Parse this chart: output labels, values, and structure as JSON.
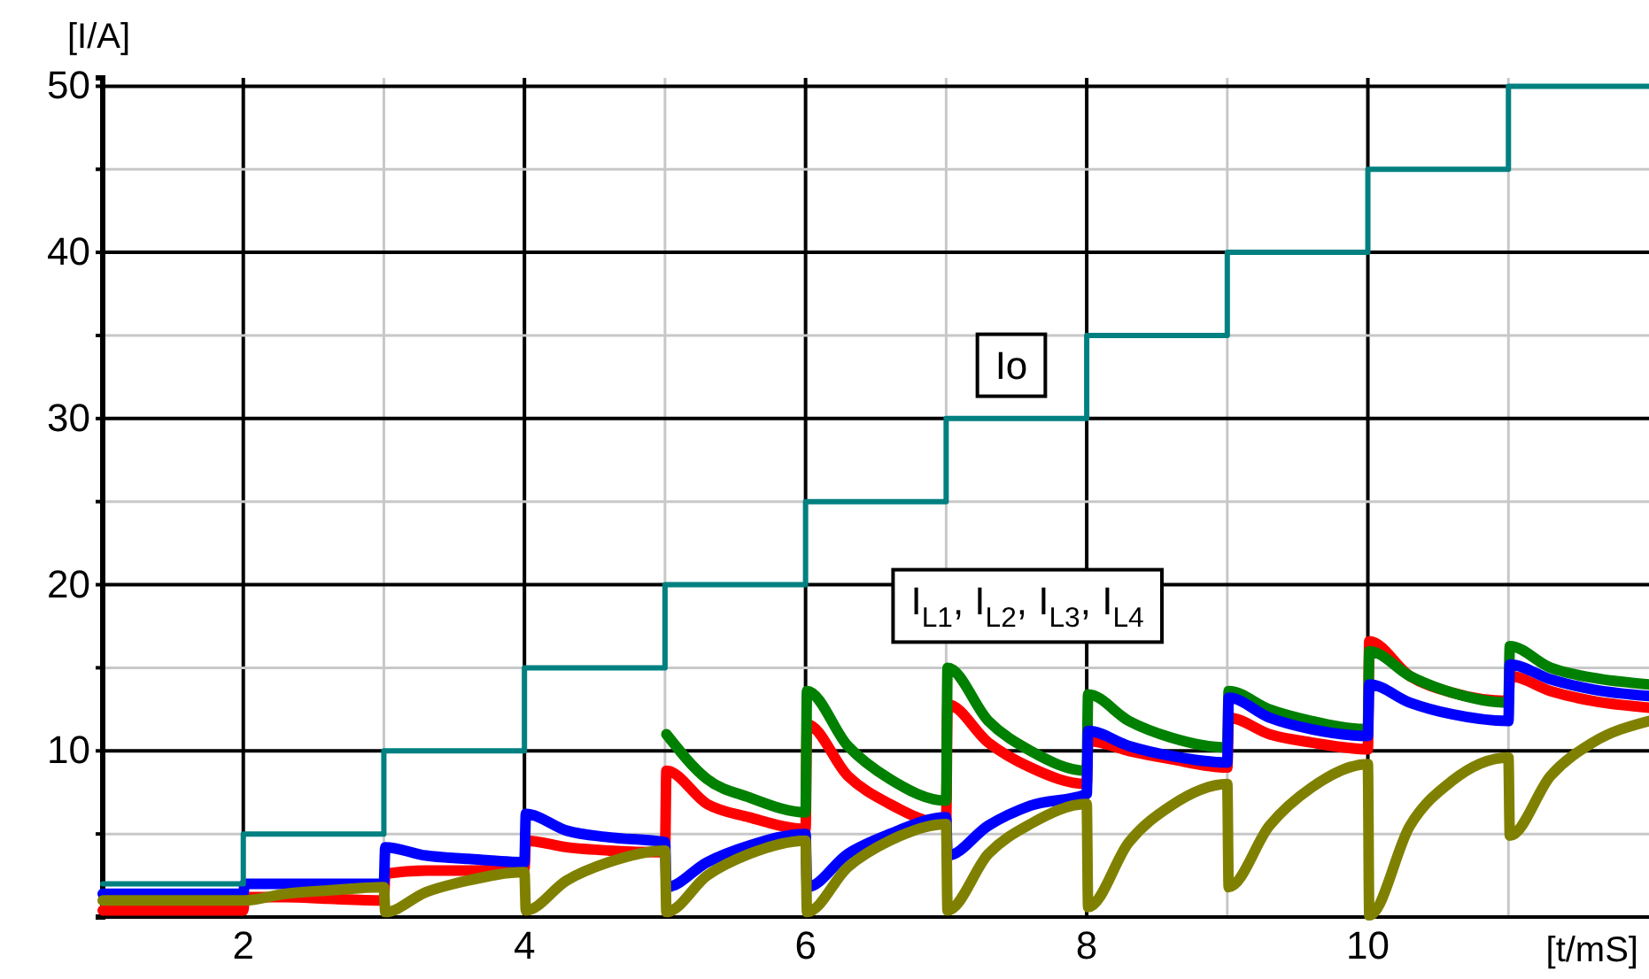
{
  "chart_data": {
    "type": "line",
    "xlabel": "[t/mS]",
    "ylabel": "[I/A]",
    "xlim": [
      1,
      12
    ],
    "ylim": [
      0,
      50.5
    ],
    "xticks": [
      {
        "value": 1,
        "label": null
      },
      2,
      {
        "value": 3,
        "label": null
      },
      4,
      {
        "value": 5,
        "label": null
      },
      6,
      {
        "value": 7,
        "label": null
      },
      8,
      {
        "value": 9,
        "label": null
      },
      10,
      {
        "value": 11,
        "label": null
      }
    ],
    "yticks": [
      {
        "value": 5,
        "label": null
      },
      10,
      {
        "value": 15,
        "label": null
      },
      20,
      {
        "value": 25,
        "label": null
      },
      30,
      {
        "value": 35,
        "label": null
      },
      40,
      {
        "value": 45,
        "label": null
      },
      50
    ],
    "grid": true,
    "annotations": [
      "Io",
      "I$_{L1}$, I$_{L2}$, I$_{L3}$, I$_{L4}$"
    ],
    "series": [
      {
        "color": "#ff0000",
        "x": [
          1,
          1.3,
          1.6,
          2,
          2.01,
          2.3,
          2.6,
          3,
          3.01,
          3.3,
          3.6,
          4,
          4.01,
          4.3,
          4.6,
          5,
          5.01,
          5.3,
          5.6,
          6,
          6.01,
          6.3,
          6.6,
          7,
          7.01,
          7.3,
          7.6,
          8,
          8.01,
          8.3,
          8.6,
          9,
          9.01,
          9.3,
          9.6,
          10,
          10.01,
          10.3,
          10.6,
          11,
          11.01,
          11.3,
          11.6,
          12
        ],
        "values": [
          0.4,
          0.4,
          0.4,
          0.4,
          1.2,
          1.2,
          1.1,
          1.0,
          2.6,
          2.8,
          2.8,
          2.9,
          4.6,
          4.2,
          4.0,
          3.9,
          8.8,
          6.8,
          6.0,
          5.3,
          11.6,
          8.5,
          6.8,
          5.6,
          12.8,
          10.5,
          9.0,
          8.0,
          10.6,
          10.0,
          9.5,
          9.0,
          12.0,
          11.0,
          10.5,
          10.1,
          16.6,
          14.5,
          13.5,
          13.0,
          14.5,
          13.6,
          13.0,
          12.6
        ]
      },
      {
        "color": "#008000",
        "x": [
          5.01,
          5.3,
          5.6,
          6,
          6.01,
          6.3,
          6.6,
          7,
          7.01,
          7.3,
          7.6,
          8,
          8.01,
          8.3,
          8.6,
          9,
          9.01,
          9.3,
          9.6,
          10,
          10.01,
          10.3,
          10.6,
          11,
          11.01,
          11.3,
          11.6,
          12
        ],
        "values": [
          11.0,
          8.3,
          7.2,
          6.3,
          13.6,
          10.3,
          8.3,
          7.0,
          15.0,
          11.8,
          10.0,
          8.8,
          13.4,
          11.8,
          10.8,
          10.2,
          13.6,
          12.5,
          11.8,
          11.3,
          16.0,
          14.5,
          13.5,
          12.9,
          16.3,
          15.0,
          14.4,
          14.0
        ]
      },
      {
        "color": "#0000ff",
        "x": [
          1,
          1.3,
          1.6,
          2,
          2.01,
          2.3,
          2.6,
          3,
          3.01,
          3.3,
          3.6,
          4,
          4.01,
          4.3,
          4.6,
          5,
          5.01,
          5.3,
          5.6,
          6,
          6.01,
          6.3,
          6.6,
          7,
          7.01,
          7.3,
          7.6,
          8,
          8.01,
          8.3,
          8.6,
          9,
          9.01,
          9.3,
          9.6,
          10,
          10.01,
          10.3,
          10.6,
          11,
          11.01,
          11.3,
          11.6,
          12
        ],
        "values": [
          1.4,
          1.4,
          1.4,
          1.4,
          2.0,
          2.0,
          2.0,
          2.0,
          4.2,
          3.7,
          3.5,
          3.3,
          6.2,
          5.2,
          4.8,
          4.5,
          1.8,
          3.3,
          4.3,
          5.0,
          1.8,
          3.8,
          5.0,
          6.0,
          3.7,
          5.5,
          6.7,
          7.4,
          11.2,
          10.3,
          9.7,
          9.3,
          13.2,
          12.0,
          11.3,
          10.9,
          14.0,
          12.9,
          12.2,
          11.8,
          15.2,
          14.3,
          13.7,
          13.3
        ]
      },
      {
        "color": "#808000",
        "x": [
          1,
          1.3,
          1.6,
          2,
          2.01,
          2.3,
          2.6,
          3,
          3.01,
          3.3,
          3.6,
          4,
          4.01,
          4.3,
          4.6,
          5,
          5.01,
          5.3,
          5.6,
          6,
          6.01,
          6.3,
          6.6,
          7,
          7.01,
          7.3,
          7.6,
          8,
          8.01,
          8.3,
          8.6,
          9,
          9.01,
          9.3,
          9.6,
          10,
          10.01,
          10.3,
          10.6,
          11,
          11.01,
          11.3,
          11.6,
          12
        ],
        "values": [
          1.0,
          1.0,
          1.0,
          1.0,
          1.0,
          1.4,
          1.6,
          1.8,
          0.3,
          1.5,
          2.2,
          2.7,
          0.4,
          2.2,
          3.3,
          4.0,
          0.3,
          2.5,
          3.8,
          4.6,
          0.3,
          3.0,
          4.6,
          5.6,
          0.4,
          3.8,
          5.6,
          6.8,
          0.6,
          4.5,
          6.7,
          8.0,
          1.8,
          5.5,
          7.8,
          9.2,
          0.1,
          5.5,
          8.2,
          9.6,
          4.9,
          8.5,
          10.5,
          11.8
        ]
      },
      {
        "type": "step",
        "color": "#008080",
        "x": [
          1,
          2,
          3,
          4,
          5,
          6,
          7,
          8,
          9,
          10,
          11,
          12
        ],
        "values": [
          2,
          5,
          10,
          15,
          20,
          25,
          30,
          35,
          40,
          45,
          50,
          50
        ]
      }
    ]
  }
}
